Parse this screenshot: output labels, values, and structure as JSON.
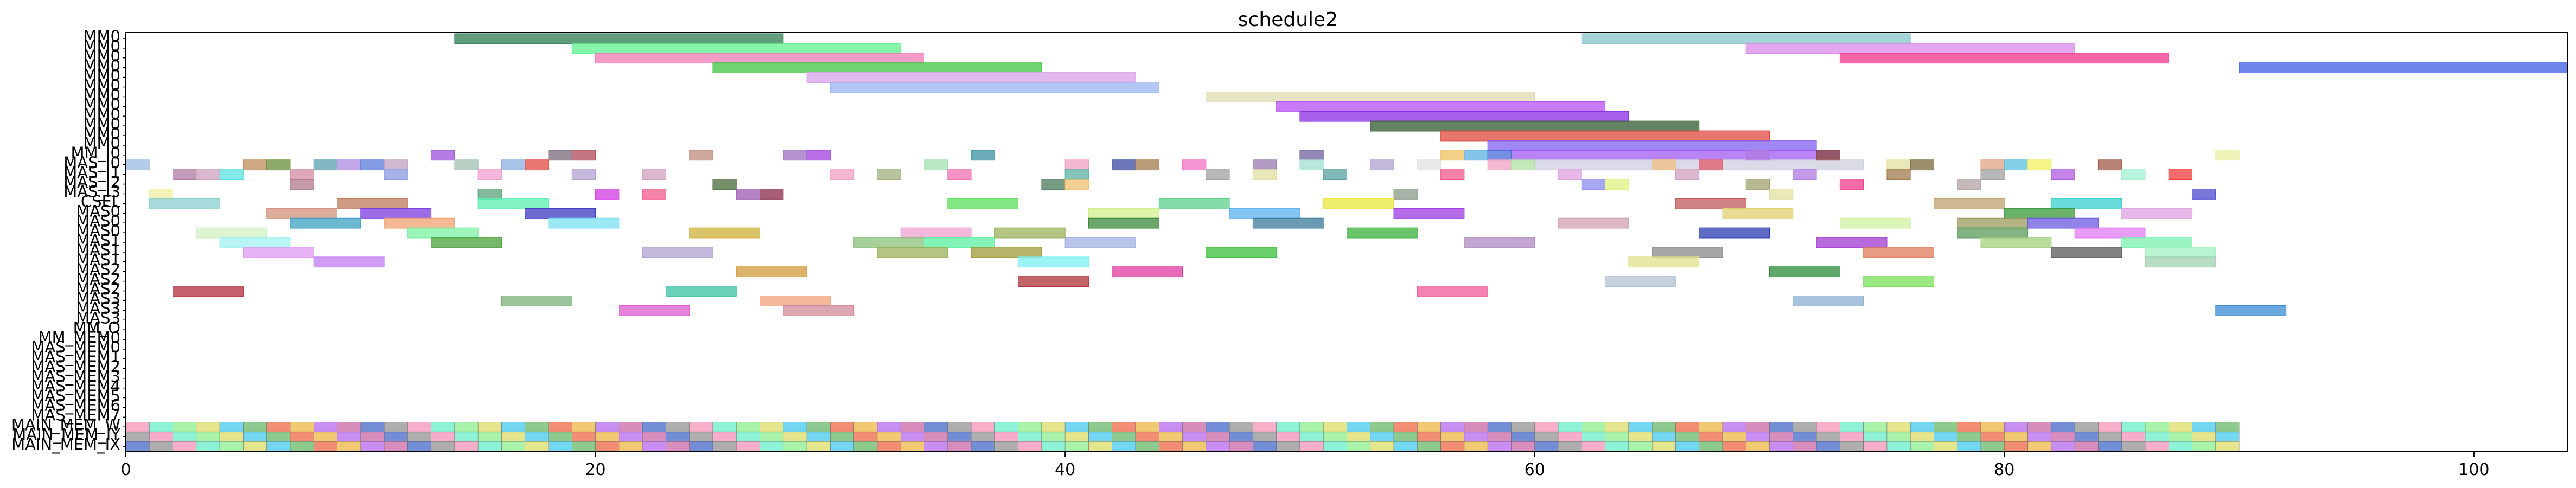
{
  "chart_data": {
    "type": "gantt",
    "title": "schedule2",
    "xlabel": "",
    "ylabel": "",
    "xlim": [
      0,
      104
    ],
    "xticks": [
      0,
      20,
      40,
      60,
      80,
      100
    ],
    "xtick_labels": [
      "0",
      "20",
      "40",
      "60",
      "80",
      "100"
    ],
    "grid": false,
    "legend": "none",
    "rows": [
      "MM0",
      "MM0",
      "MM0",
      "MM0",
      "MM0",
      "MM0",
      "MM0",
      "MM0",
      "MM0",
      "MM0",
      "MM0",
      "MM0",
      "MM_I0",
      "MAS_I0",
      "MAS_I1",
      "MAS_I2",
      "MAS_I3",
      "CSEL",
      "MAS0",
      "MAS0",
      "MAS0",
      "MAS1",
      "MAS1",
      "MAS1",
      "MAS2",
      "MAS2",
      "MAS2",
      "MAS3",
      "MAS3",
      "MAS3",
      "MM_O",
      "MM_MEM0",
      "MAS_MEM0",
      "MAS_MEM1",
      "MAS_MEM2",
      "MAS_MEM3",
      "MAS_MEM4",
      "MAS_MEM5",
      "MAS_MEM6",
      "MAS_MEM7",
      "MAIN_MEM_W",
      "MAIN_MEM_IY",
      "MAIN_MEM_IX"
    ],
    "tasks": [
      {
        "row": 0,
        "start": 14,
        "end": 28,
        "color": "#2e7d4f"
      },
      {
        "row": 0,
        "start": 62,
        "end": 76,
        "color": "#86c5c9"
      },
      {
        "row": 1,
        "start": 19,
        "end": 33,
        "color": "#5df08f"
      },
      {
        "row": 1,
        "start": 69,
        "end": 83,
        "color": "#d889e8"
      },
      {
        "row": 2,
        "start": 20,
        "end": 34,
        "color": "#f07ab4"
      },
      {
        "row": 2,
        "start": 73,
        "end": 87,
        "color": "#f5338a"
      },
      {
        "row": 3,
        "start": 25,
        "end": 39,
        "color": "#3fc43f"
      },
      {
        "row": 3,
        "start": 90,
        "end": 104,
        "color": "#3b5de8"
      },
      {
        "row": 4,
        "start": 29,
        "end": 43,
        "color": "#d8a2ea"
      },
      {
        "row": 5,
        "start": 30,
        "end": 44,
        "color": "#9ab4f0"
      },
      {
        "row": 6,
        "start": 46,
        "end": 60,
        "color": "#dcdcb0"
      },
      {
        "row": 7,
        "start": 49,
        "end": 63,
        "color": "#b44ff0"
      },
      {
        "row": 8,
        "start": 50,
        "end": 64,
        "color": "#8a2be2"
      },
      {
        "row": 9,
        "start": 53,
        "end": 67,
        "color": "#2f5a2f"
      },
      {
        "row": 10,
        "start": 56,
        "end": 70,
        "color": "#e0483f"
      },
      {
        "row": 11,
        "start": 58,
        "end": 72,
        "color": "#7f5ff0"
      },
      {
        "row": 12,
        "start": 59,
        "end": 73,
        "color": "#a05af0"
      },
      {
        "row": 13,
        "start": 60,
        "end": 74,
        "color": "#cfcfe0"
      },
      {
        "row": 12,
        "start": 13,
        "end": 14,
        "color": "#9b4fd8"
      },
      {
        "row": 12,
        "start": 18,
        "end": 19,
        "color": "#7a6a7a"
      },
      {
        "row": 12,
        "start": 19,
        "end": 20,
        "color": "#b04a5a"
      },
      {
        "row": 12,
        "start": 24,
        "end": 25,
        "color": "#c08a7a"
      },
      {
        "row": 12,
        "start": 28,
        "end": 29,
        "color": "#9b6fc0"
      },
      {
        "row": 12,
        "start": 29,
        "end": 30,
        "color": "#a03fe0"
      },
      {
        "row": 12,
        "start": 36,
        "end": 37,
        "color": "#3b8fa0"
      },
      {
        "row": 12,
        "start": 50,
        "end": 51,
        "color": "#6f5f9f"
      },
      {
        "row": 12,
        "start": 56,
        "end": 57,
        "color": "#f0c060"
      },
      {
        "row": 12,
        "start": 57,
        "end": 58,
        "color": "#5ab0e0"
      },
      {
        "row": 12,
        "start": 58,
        "end": 59,
        "color": "#4a6ad8"
      },
      {
        "row": 12,
        "start": 69,
        "end": 70,
        "color": "#b07ae0"
      },
      {
        "row": 12,
        "start": 72,
        "end": 73,
        "color": "#8a4a3a"
      },
      {
        "row": 12,
        "start": 89,
        "end": 90,
        "color": "#e8f0a0"
      },
      {
        "row": 13,
        "start": 0,
        "end": 1,
        "color": "#9ab8e0"
      },
      {
        "row": 13,
        "start": 5,
        "end": 6,
        "color": "#c08a5a"
      },
      {
        "row": 13,
        "start": 6,
        "end": 7,
        "color": "#6a8f3a"
      },
      {
        "row": 13,
        "start": 8,
        "end": 9,
        "color": "#5a9fb0"
      },
      {
        "row": 13,
        "start": 9,
        "end": 10,
        "color": "#b08ae0"
      },
      {
        "row": 13,
        "start": 10,
        "end": 11,
        "color": "#5a7ad8"
      },
      {
        "row": 13,
        "start": 11,
        "end": 12,
        "color": "#c0a0c0"
      },
      {
        "row": 13,
        "start": 14,
        "end": 15,
        "color": "#a0c0b0"
      },
      {
        "row": 13,
        "start": 16,
        "end": 17,
        "color": "#8ab0e0"
      },
      {
        "row": 13,
        "start": 17,
        "end": 18,
        "color": "#e0483f"
      },
      {
        "row": 13,
        "start": 34,
        "end": 35,
        "color": "#a0e0b0"
      },
      {
        "row": 13,
        "start": 40,
        "end": 41,
        "color": "#f0a0c0"
      },
      {
        "row": 13,
        "start": 42,
        "end": 43,
        "color": "#3a4aa0"
      },
      {
        "row": 13,
        "start": 43,
        "end": 44,
        "color": "#a07a4a"
      },
      {
        "row": 13,
        "start": 45,
        "end": 46,
        "color": "#f070c0"
      },
      {
        "row": 13,
        "start": 48,
        "end": 49,
        "color": "#9a7ab0"
      },
      {
        "row": 13,
        "start": 50,
        "end": 51,
        "color": "#a0e0d0"
      },
      {
        "row": 13,
        "start": 53,
        "end": 54,
        "color": "#b0a0d0"
      },
      {
        "row": 13,
        "start": 55,
        "end": 56,
        "color": "#e0e0e0"
      },
      {
        "row": 13,
        "start": 58,
        "end": 59,
        "color": "#f0a0c0"
      },
      {
        "row": 13,
        "start": 59,
        "end": 60,
        "color": "#b0e0a0"
      },
      {
        "row": 13,
        "start": 65,
        "end": 66,
        "color": "#f0c080"
      },
      {
        "row": 13,
        "start": 67,
        "end": 68,
        "color": "#e05a6a"
      },
      {
        "row": 13,
        "start": 75,
        "end": 76,
        "color": "#e0e0a0"
      },
      {
        "row": 13,
        "start": 76,
        "end": 77,
        "color": "#7a6a3a"
      },
      {
        "row": 13,
        "start": 79,
        "end": 80,
        "color": "#e0a080"
      },
      {
        "row": 13,
        "start": 80,
        "end": 81,
        "color": "#5ac0e0"
      },
      {
        "row": 13,
        "start": 81,
        "end": 82,
        "color": "#f0f060"
      },
      {
        "row": 13,
        "start": 84,
        "end": 85,
        "color": "#a05a4a"
      },
      {
        "row": 14,
        "start": 2,
        "end": 3,
        "color": "#b07aa0"
      },
      {
        "row": 14,
        "start": 3,
        "end": 4,
        "color": "#d0a0c0"
      },
      {
        "row": 14,
        "start": 4,
        "end": 5,
        "color": "#5ae0e0"
      },
      {
        "row": 14,
        "start": 7,
        "end": 8,
        "color": "#d08aa0"
      },
      {
        "row": 14,
        "start": 11,
        "end": 12,
        "color": "#8a9ae0"
      },
      {
        "row": 14,
        "start": 15,
        "end": 16,
        "color": "#f0a0d0"
      },
      {
        "row": 14,
        "start": 19,
        "end": 20,
        "color": "#b0a0d0"
      },
      {
        "row": 14,
        "start": 22,
        "end": 23,
        "color": "#d0a0c0"
      },
      {
        "row": 14,
        "start": 30,
        "end": 31,
        "color": "#f0a0c0"
      },
      {
        "row": 14,
        "start": 32,
        "end": 33,
        "color": "#a0b080"
      },
      {
        "row": 14,
        "start": 35,
        "end": 36,
        "color": "#f070b0"
      },
      {
        "row": 14,
        "start": 40,
        "end": 41,
        "color": "#5ab0a0"
      },
      {
        "row": 14,
        "start": 46,
        "end": 47,
        "color": "#a0a0a0"
      },
      {
        "row": 14,
        "start": 48,
        "end": 49,
        "color": "#e0e0a0"
      },
      {
        "row": 14,
        "start": 51,
        "end": 52,
        "color": "#5aa0a0"
      },
      {
        "row": 14,
        "start": 56,
        "end": 57,
        "color": "#f05a8a"
      },
      {
        "row": 14,
        "start": 61,
        "end": 62,
        "color": "#e0a0e0"
      },
      {
        "row": 14,
        "start": 66,
        "end": 67,
        "color": "#d0a0c0"
      },
      {
        "row": 14,
        "start": 71,
        "end": 72,
        "color": "#b07ae0"
      },
      {
        "row": 14,
        "start": 75,
        "end": 76,
        "color": "#a07a4a"
      },
      {
        "row": 14,
        "start": 79,
        "end": 80,
        "color": "#a0a0a0"
      },
      {
        "row": 14,
        "start": 82,
        "end": 83,
        "color": "#b05ae0"
      },
      {
        "row": 14,
        "start": 85,
        "end": 86,
        "color": "#a0f0d0"
      },
      {
        "row": 14,
        "start": 87,
        "end": 88,
        "color": "#f03a3a"
      },
      {
        "row": 15,
        "start": 7,
        "end": 8,
        "color": "#b07a8a"
      },
      {
        "row": 15,
        "start": 25,
        "end": 26,
        "color": "#4a6a3a"
      },
      {
        "row": 15,
        "start": 39,
        "end": 40,
        "color": "#4a7a5a"
      },
      {
        "row": 15,
        "start": 40,
        "end": 41,
        "color": "#f0c070"
      },
      {
        "row": 15,
        "start": 62,
        "end": 63,
        "color": "#8a8af0"
      },
      {
        "row": 15,
        "start": 63,
        "end": 64,
        "color": "#e0f080"
      },
      {
        "row": 15,
        "start": 69,
        "end": 70,
        "color": "#a0a070"
      },
      {
        "row": 15,
        "start": 73,
        "end": 74,
        "color": "#f03a8a"
      },
      {
        "row": 15,
        "start": 78,
        "end": 79,
        "color": "#b0a0a0"
      },
      {
        "row": 16,
        "start": 1,
        "end": 2,
        "color": "#f0f0a0"
      },
      {
        "row": 16,
        "start": 15,
        "end": 16,
        "color": "#5aa07a"
      },
      {
        "row": 16,
        "start": 20,
        "end": 21,
        "color": "#d03ae0"
      },
      {
        "row": 16,
        "start": 22,
        "end": 23,
        "color": "#f05a8a"
      },
      {
        "row": 16,
        "start": 26,
        "end": 27,
        "color": "#9a5ab0"
      },
      {
        "row": 16,
        "start": 27,
        "end": 28,
        "color": "#8a2a4a"
      },
      {
        "row": 16,
        "start": 54,
        "end": 55,
        "color": "#8a9a8a"
      },
      {
        "row": 16,
        "start": 70,
        "end": 71,
        "color": "#e0e0a0"
      },
      {
        "row": 16,
        "start": 88,
        "end": 89,
        "color": "#4a4ad0"
      },
      {
        "row": 17,
        "start": 1,
        "end": 4,
        "color": "#8acfcf"
      },
      {
        "row": 17,
        "start": 9,
        "end": 12,
        "color": "#c07a5a"
      },
      {
        "row": 17,
        "start": 15,
        "end": 18,
        "color": "#5af0b0"
      },
      {
        "row": 17,
        "start": 35,
        "end": 38,
        "color": "#5ae05a"
      },
      {
        "row": 17,
        "start": 44,
        "end": 47,
        "color": "#5ad08a"
      },
      {
        "row": 17,
        "start": 51,
        "end": 54,
        "color": "#e8e83a"
      },
      {
        "row": 17,
        "start": 66,
        "end": 69,
        "color": "#c05a5a"
      },
      {
        "row": 17,
        "start": 77,
        "end": 80,
        "color": "#c0a070"
      },
      {
        "row": 17,
        "start": 82,
        "end": 85,
        "color": "#3ad0d0"
      },
      {
        "row": 18,
        "start": 6,
        "end": 9,
        "color": "#d0907a"
      },
      {
        "row": 18,
        "start": 10,
        "end": 13,
        "color": "#7a3ae0"
      },
      {
        "row": 18,
        "start": 17,
        "end": 20,
        "color": "#3a3ac0"
      },
      {
        "row": 18,
        "start": 41,
        "end": 44,
        "color": "#d0f08a"
      },
      {
        "row": 18,
        "start": 47,
        "end": 50,
        "color": "#5ab0f0"
      },
      {
        "row": 18,
        "start": 54,
        "end": 57,
        "color": "#9a3ae0"
      },
      {
        "row": 18,
        "start": 68,
        "end": 71,
        "color": "#e0d070"
      },
      {
        "row": 18,
        "start": 80,
        "end": 83,
        "color": "#3a9a3a"
      },
      {
        "row": 18,
        "start": 85,
        "end": 88,
        "color": "#e0a0e0"
      },
      {
        "row": 19,
        "start": 7,
        "end": 10,
        "color": "#3aa0c0"
      },
      {
        "row": 19,
        "start": 11,
        "end": 14,
        "color": "#f0a070"
      },
      {
        "row": 19,
        "start": 18,
        "end": 21,
        "color": "#7ae0f0"
      },
      {
        "row": 19,
        "start": 41,
        "end": 44,
        "color": "#3a8a3a"
      },
      {
        "row": 19,
        "start": 48,
        "end": 51,
        "color": "#3a7a9a"
      },
      {
        "row": 19,
        "start": 61,
        "end": 64,
        "color": "#d0a0b0"
      },
      {
        "row": 19,
        "start": 73,
        "end": 76,
        "color": "#d0f0a0"
      },
      {
        "row": 19,
        "start": 78,
        "end": 81,
        "color": "#9a9a5a"
      },
      {
        "row": 19,
        "start": 81,
        "end": 84,
        "color": "#6a5ae0"
      },
      {
        "row": 20,
        "start": 3,
        "end": 6,
        "color": "#d0f0c0"
      },
      {
        "row": 20,
        "start": 12,
        "end": 15,
        "color": "#7af0a0"
      },
      {
        "row": 20,
        "start": 24,
        "end": 27,
        "color": "#d0b03a"
      },
      {
        "row": 20,
        "start": 33,
        "end": 36,
        "color": "#f0a0d0"
      },
      {
        "row": 20,
        "start": 37,
        "end": 40,
        "color": "#9ab05a"
      },
      {
        "row": 20,
        "start": 52,
        "end": 55,
        "color": "#3ab03a"
      },
      {
        "row": 20,
        "start": 67,
        "end": 70,
        "color": "#2a3ab0"
      },
      {
        "row": 20,
        "start": 78,
        "end": 81,
        "color": "#5a9a5a"
      },
      {
        "row": 20,
        "start": 83,
        "end": 86,
        "color": "#e07af0"
      },
      {
        "row": 21,
        "start": 4,
        "end": 7,
        "color": "#a0f0f0"
      },
      {
        "row": 21,
        "start": 13,
        "end": 16,
        "color": "#4aa03a"
      },
      {
        "row": 21,
        "start": 31,
        "end": 34,
        "color": "#8ac07a"
      },
      {
        "row": 21,
        "start": 34,
        "end": 37,
        "color": "#5af0a0"
      },
      {
        "row": 21,
        "start": 40,
        "end": 43,
        "color": "#a0b0e0"
      },
      {
        "row": 21,
        "start": 57,
        "end": 60,
        "color": "#b08ac0"
      },
      {
        "row": 21,
        "start": 72,
        "end": 75,
        "color": "#a03ad0"
      },
      {
        "row": 21,
        "start": 79,
        "end": 82,
        "color": "#a0d07a"
      },
      {
        "row": 21,
        "start": 85,
        "end": 88,
        "color": "#7af0b0"
      },
      {
        "row": 22,
        "start": 5,
        "end": 8,
        "color": "#e09af0"
      },
      {
        "row": 22,
        "start": 22,
        "end": 25,
        "color": "#b0a0d0"
      },
      {
        "row": 22,
        "start": 32,
        "end": 35,
        "color": "#9ab05a"
      },
      {
        "row": 22,
        "start": 36,
        "end": 39,
        "color": "#a09a3a"
      },
      {
        "row": 22,
        "start": 46,
        "end": 49,
        "color": "#3ac03a"
      },
      {
        "row": 22,
        "start": 65,
        "end": 68,
        "color": "#8a8a8a"
      },
      {
        "row": 22,
        "start": 74,
        "end": 77,
        "color": "#e07a5a"
      },
      {
        "row": 22,
        "start": 82,
        "end": 85,
        "color": "#5a5a5a"
      },
      {
        "row": 22,
        "start": 86,
        "end": 89,
        "color": "#a0f0c0"
      },
      {
        "row": 23,
        "start": 8,
        "end": 11,
        "color": "#c07af0"
      },
      {
        "row": 23,
        "start": 38,
        "end": 41,
        "color": "#7af0f0"
      },
      {
        "row": 23,
        "start": 64,
        "end": 67,
        "color": "#e0e08a"
      },
      {
        "row": 23,
        "start": 86,
        "end": 89,
        "color": "#a0d0b0"
      },
      {
        "row": 24,
        "start": 26,
        "end": 29,
        "color": "#d09a3a"
      },
      {
        "row": 24,
        "start": 42,
        "end": 45,
        "color": "#e03aa0"
      },
      {
        "row": 24,
        "start": 70,
        "end": 73,
        "color": "#2a8a3a"
      },
      {
        "row": 25,
        "start": 38,
        "end": 41,
        "color": "#b0303a"
      },
      {
        "row": 25,
        "start": 63,
        "end": 66,
        "color": "#b0c0d0"
      },
      {
        "row": 25,
        "start": 74,
        "end": 77,
        "color": "#7ae05a"
      },
      {
        "row": 26,
        "start": 2,
        "end": 5,
        "color": "#b02a3a"
      },
      {
        "row": 26,
        "start": 23,
        "end": 26,
        "color": "#3ac0a0"
      },
      {
        "row": 26,
        "start": 55,
        "end": 58,
        "color": "#f05a9a"
      },
      {
        "row": 27,
        "start": 16,
        "end": 19,
        "color": "#7ab07a"
      },
      {
        "row": 27,
        "start": 27,
        "end": 30,
        "color": "#f0a07a"
      },
      {
        "row": 27,
        "start": 71,
        "end": 74,
        "color": "#8ab0d0"
      },
      {
        "row": 28,
        "start": 21,
        "end": 24,
        "color": "#e05ad0"
      },
      {
        "row": 28,
        "start": 28,
        "end": 31,
        "color": "#d08a9a"
      },
      {
        "row": 28,
        "start": 89,
        "end": 92,
        "color": "#3a8ad0"
      }
    ],
    "memory_rows": [
      40,
      41,
      42
    ],
    "memory_span": [
      0,
      90
    ]
  }
}
